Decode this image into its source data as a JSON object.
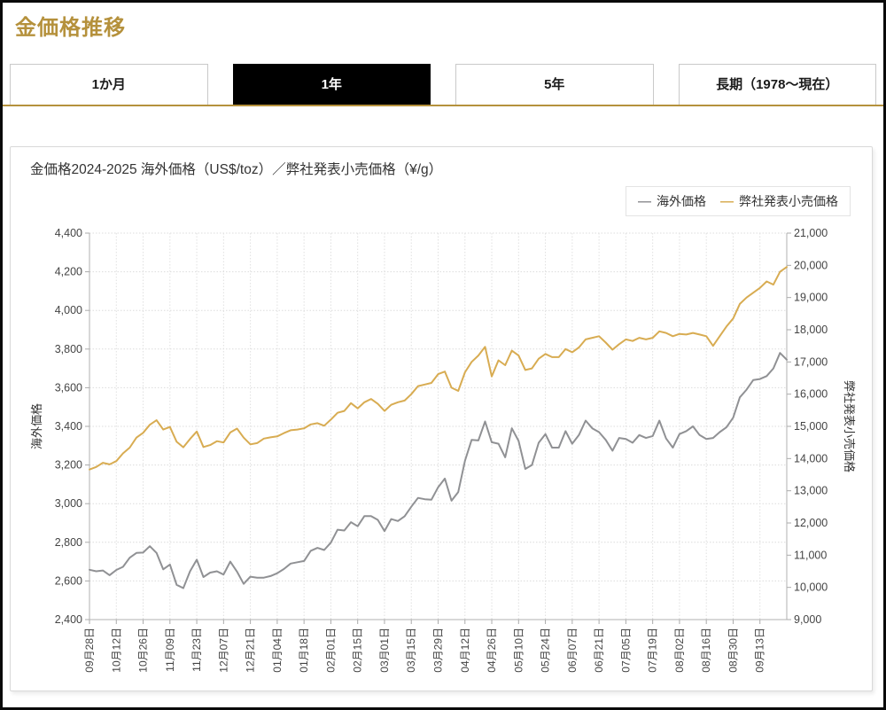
{
  "page": {
    "title": "金価格推移"
  },
  "tabs": [
    {
      "label": "1か月",
      "active": false
    },
    {
      "label": "1年",
      "active": true
    },
    {
      "label": "5年",
      "active": false
    },
    {
      "label": "長期（1978～現在）",
      "active": false
    }
  ],
  "colors": {
    "accent_gold": "#B5913C",
    "series_gray": "#909194",
    "series_gold": "#D8AC52",
    "tab_active_bg": "#000000"
  },
  "chart_data": {
    "type": "line",
    "title": "金価格2024-2025 海外価格（US$/toz）／弊社発表小売価格（¥/g）",
    "legend": [
      {
        "name": "海外価格",
        "color": "#909194"
      },
      {
        "name": "弊社発表小売価格",
        "color": "#D8AC52"
      }
    ],
    "legend_position": "top-right",
    "grid": true,
    "points_per_category": 4,
    "categories": [
      "09月28日",
      "10月12日",
      "10月26日",
      "11月09日",
      "11月23日",
      "12月07日",
      "12月21日",
      "01月04日",
      "01月18日",
      "02月01日",
      "02月15日",
      "03月01日",
      "03月15日",
      "03月29日",
      "04月12日",
      "04月26日",
      "05月10日",
      "05月24日",
      "06月07日",
      "06月21日",
      "07月05日",
      "07月19日",
      "08月02日",
      "08月16日",
      "08月30日",
      "09月13日"
    ],
    "left_axis": {
      "label": "海外価格",
      "min": 2400,
      "max": 4400,
      "tick_step": 200,
      "ticks": [
        "4,400",
        "4,200",
        "4,000",
        "3,800",
        "3,600",
        "3,400",
        "3,200",
        "3,000",
        "2,800",
        "2,600",
        "2,400"
      ]
    },
    "right_axis": {
      "label": "弊社発表小売価格",
      "min": 9000,
      "max": 21000,
      "tick_step": 1000,
      "ticks": [
        "21,000",
        "20,000",
        "19,000",
        "18,000",
        "17,000",
        "16,000",
        "15,000",
        "14,000",
        "13,000",
        "12,000",
        "11,000",
        "10,000",
        "9,000"
      ]
    },
    "series": [
      {
        "name": "海外価格",
        "axis": "left",
        "color": "#909194",
        "unit": "US$/toz",
        "values": [
          2658,
          2650,
          2654,
          2630,
          2657,
          2673,
          2720,
          2745,
          2747,
          2780,
          2745,
          2660,
          2685,
          2580,
          2563,
          2650,
          2710,
          2620,
          2643,
          2650,
          2633,
          2700,
          2648,
          2585,
          2622,
          2617,
          2617,
          2625,
          2640,
          2662,
          2690,
          2697,
          2703,
          2756,
          2771,
          2760,
          2798,
          2865,
          2861,
          2904,
          2883,
          2936,
          2936,
          2916,
          2858,
          2920,
          2910,
          2935,
          2984,
          3030,
          3023,
          3020,
          3085,
          3130,
          3015,
          3060,
          3222,
          3330,
          3327,
          3425,
          3318,
          3310,
          3240,
          3390,
          3325,
          3180,
          3200,
          3315,
          3360,
          3290,
          3290,
          3375,
          3310,
          3355,
          3430,
          3390,
          3370,
          3330,
          3274,
          3340,
          3335,
          3315,
          3355,
          3340,
          3350,
          3430,
          3337,
          3290,
          3360,
          3375,
          3400,
          3355,
          3335,
          3340,
          3370,
          3395,
          3445,
          3550,
          3590,
          3640,
          3645,
          3660,
          3700,
          3780,
          3745
        ]
      },
      {
        "name": "弊社発表小売価格",
        "axis": "right",
        "color": "#D8AC52",
        "unit": "¥/g",
        "values": [
          13660,
          13740,
          13870,
          13820,
          13920,
          14160,
          14340,
          14650,
          14800,
          15050,
          15190,
          14900,
          14980,
          14520,
          14350,
          14610,
          14840,
          14360,
          14420,
          14540,
          14500,
          14810,
          14930,
          14650,
          14440,
          14480,
          14620,
          14660,
          14690,
          14790,
          14880,
          14900,
          14940,
          15060,
          15100,
          15020,
          15210,
          15420,
          15480,
          15720,
          15560,
          15750,
          15850,
          15700,
          15480,
          15670,
          15750,
          15800,
          16000,
          16250,
          16300,
          16350,
          16620,
          16700,
          16200,
          16100,
          16680,
          17000,
          17200,
          17470,
          16550,
          17050,
          16900,
          17350,
          17200,
          16750,
          16800,
          17100,
          17250,
          17150,
          17150,
          17400,
          17300,
          17450,
          17700,
          17750,
          17800,
          17600,
          17380,
          17550,
          17700,
          17650,
          17750,
          17700,
          17750,
          17950,
          17900,
          17800,
          17870,
          17850,
          17900,
          17850,
          17800,
          17500,
          17800,
          18100,
          18350,
          18800,
          19000,
          19150,
          19300,
          19500,
          19400,
          19800,
          19950
        ]
      }
    ]
  }
}
